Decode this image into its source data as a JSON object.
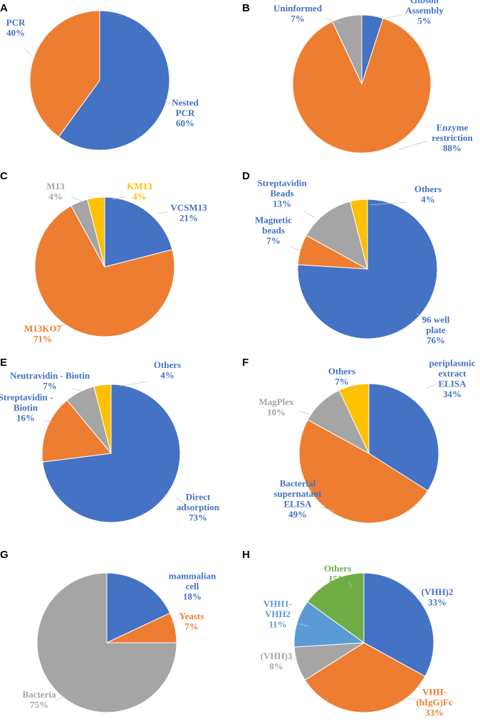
{
  "colors": {
    "blue": "#4472c4",
    "orange": "#ed7d31",
    "gray": "#a5a5a5",
    "yellow": "#ffc000",
    "lightblue": "#5b9bd5",
    "green": "#70ad47",
    "leader": "#c8c8c8"
  },
  "chart_data": [
    {
      "panel": "A",
      "type": "pie",
      "title": "",
      "start": "top",
      "direction": "clockwise",
      "slices": [
        {
          "label": [
            "Nested",
            "PCR",
            "60%"
          ],
          "value": 60,
          "color": "blue",
          "text_color": "blue"
        },
        {
          "label": [
            "PCR",
            "40%"
          ],
          "value": 40,
          "color": "orange",
          "text_color": "blue"
        }
      ]
    },
    {
      "panel": "B",
      "type": "pie",
      "title": "",
      "start": "top",
      "direction": "clockwise",
      "slices": [
        {
          "label": [
            "Gibson",
            "Assembly",
            "5%"
          ],
          "value": 5,
          "color": "blue",
          "text_color": "blue"
        },
        {
          "label": [
            "Enzyme",
            "restriction",
            "88%"
          ],
          "value": 88,
          "color": "orange",
          "text_color": "blue"
        },
        {
          "label": [
            "Uninformed",
            "7%"
          ],
          "value": 7,
          "color": "gray",
          "text_color": "blue"
        }
      ]
    },
    {
      "panel": "C",
      "type": "pie",
      "title": "",
      "start": "top",
      "direction": "clockwise",
      "slices": [
        {
          "label": [
            "VCSM13",
            "21%"
          ],
          "value": 21,
          "color": "blue",
          "text_color": "blue"
        },
        {
          "label": [
            "M13KO7",
            "71%"
          ],
          "value": 71,
          "color": "orange",
          "text_color": "orange"
        },
        {
          "label": [
            "M13",
            "4%"
          ],
          "value": 4,
          "color": "gray",
          "text_color": "gray"
        },
        {
          "label": [
            "KM13",
            "4%"
          ],
          "value": 4,
          "color": "yellow",
          "text_color": "yellow"
        }
      ]
    },
    {
      "panel": "D",
      "type": "pie",
      "title": "",
      "start": "top",
      "direction": "clockwise",
      "slices": [
        {
          "label": [
            "96 well",
            "plate",
            "76%"
          ],
          "value": 76,
          "color": "blue",
          "text_color": "blue"
        },
        {
          "label": [
            "Magnetic",
            "beads",
            "7%"
          ],
          "value": 7,
          "color": "orange",
          "text_color": "blue"
        },
        {
          "label": [
            "Streptavidin",
            "Beads",
            "13%"
          ],
          "value": 13,
          "color": "gray",
          "text_color": "blue"
        },
        {
          "label": [
            "Others",
            "4%"
          ],
          "value": 4,
          "color": "yellow",
          "text_color": "blue"
        }
      ]
    },
    {
      "panel": "E",
      "type": "pie",
      "title": "",
      "start": "top",
      "direction": "clockwise",
      "slices": [
        {
          "label": [
            "Direct",
            "adsorption",
            "73%"
          ],
          "value": 73,
          "color": "blue",
          "text_color": "blue"
        },
        {
          "label": [
            "Streptavidin -",
            "Biotin",
            "16%"
          ],
          "value": 16,
          "color": "orange",
          "text_color": "blue"
        },
        {
          "label": [
            "Neutravidin - Biotin",
            "7%"
          ],
          "value": 7,
          "color": "gray",
          "text_color": "blue"
        },
        {
          "label": [
            "Others",
            "4%"
          ],
          "value": 4,
          "color": "yellow",
          "text_color": "blue"
        }
      ]
    },
    {
      "panel": "F",
      "type": "pie",
      "title": "",
      "start": "top",
      "direction": "clockwise",
      "slices": [
        {
          "label": [
            "periplasmic",
            "extract",
            "ELISA",
            "34%"
          ],
          "value": 34,
          "color": "blue",
          "text_color": "blue"
        },
        {
          "label": [
            "Bacterial",
            "supernatant",
            "ELISA",
            "49%"
          ],
          "value": 49,
          "color": "orange",
          "text_color": "blue"
        },
        {
          "label": [
            "MagPlex",
            "10%"
          ],
          "value": 10,
          "color": "gray",
          "text_color": "gray"
        },
        {
          "label": [
            "Others",
            "7%"
          ],
          "value": 7,
          "color": "yellow",
          "text_color": "blue"
        }
      ]
    },
    {
      "panel": "G",
      "type": "pie",
      "title": "",
      "start": "top",
      "direction": "clockwise",
      "slices": [
        {
          "label": [
            "mammalian",
            "cell",
            "18%"
          ],
          "value": 18,
          "color": "blue",
          "text_color": "blue"
        },
        {
          "label": [
            "Yeasts",
            "7%"
          ],
          "value": 7,
          "color": "orange",
          "text_color": "orange"
        },
        {
          "label": [
            "Bacteria",
            "75%"
          ],
          "value": 75,
          "color": "gray",
          "text_color": "gray"
        }
      ]
    },
    {
      "panel": "H",
      "type": "pie",
      "title": "",
      "start": "top",
      "direction": "clockwise",
      "slices": [
        {
          "label": [
            "(VHH)2",
            "33%"
          ],
          "value": 33,
          "color": "blue",
          "text_color": "blue"
        },
        {
          "label": [
            "VHH-",
            "(hIgG)Fc",
            "33%"
          ],
          "value": 33,
          "color": "orange",
          "text_color": "orange"
        },
        {
          "label": [
            "(VHH)3",
            "8%"
          ],
          "value": 8,
          "color": "gray",
          "text_color": "gray"
        },
        {
          "label": [
            "VHH1-",
            "VHH2",
            "11%"
          ],
          "value": 11,
          "color": "lightblue",
          "text_color": "lightblue"
        },
        {
          "label": [
            "Others",
            "15%"
          ],
          "value": 15,
          "color": "green",
          "text_color": "green"
        }
      ]
    }
  ]
}
